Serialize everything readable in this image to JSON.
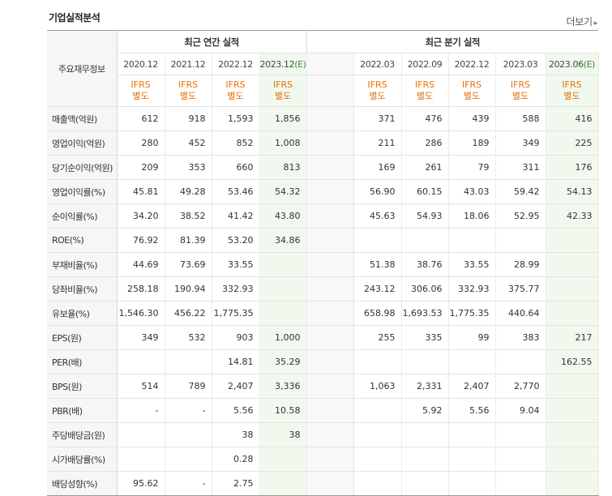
{
  "section_title": "기업실적분석",
  "more_link": "더보기",
  "header": {
    "row_label": "주요재무정보",
    "annual_group": "최근 연간 실적",
    "quarter_group": "최근 분기 실적",
    "annual_periods": [
      "2020.12",
      "2021.12",
      "2022.12",
      "2023.12"
    ],
    "annual_est_mark": "(E)",
    "quarter_periods": [
      "2022.03",
      "2022.09",
      "2022.12",
      "2023.03",
      "2023.06"
    ],
    "quarter_est_mark": "(E)",
    "ifrs": "IFRS",
    "basis": "별도"
  },
  "rows": [
    {
      "label": "매출액(억원)",
      "annual": [
        "612",
        "918",
        "1,593",
        "1,856"
      ],
      "quarter": [
        "371",
        "476",
        "439",
        "588",
        "416"
      ]
    },
    {
      "label": "영업이익(억원)",
      "annual": [
        "280",
        "452",
        "852",
        "1,008"
      ],
      "quarter": [
        "211",
        "286",
        "189",
        "349",
        "225"
      ]
    },
    {
      "label": "당기순이익(억원)",
      "annual": [
        "209",
        "353",
        "660",
        "813"
      ],
      "quarter": [
        "169",
        "261",
        "79",
        "311",
        "176"
      ]
    },
    {
      "label": "영업이익률(%)",
      "annual": [
        "45.81",
        "49.28",
        "53.46",
        "54.32"
      ],
      "quarter": [
        "56.90",
        "60.15",
        "43.03",
        "59.42",
        "54.13"
      ]
    },
    {
      "label": "순이익률(%)",
      "annual": [
        "34.20",
        "38.52",
        "41.42",
        "43.80"
      ],
      "quarter": [
        "45.63",
        "54.93",
        "18.06",
        "52.95",
        "42.33"
      ]
    },
    {
      "label": "ROE(%)",
      "annual": [
        "76.92",
        "81.39",
        "53.20",
        "34.86"
      ],
      "quarter": [
        "",
        "",
        "",
        "",
        ""
      ]
    },
    {
      "label": "부채비율(%)",
      "annual": [
        "44.69",
        "73.69",
        "33.55",
        ""
      ],
      "quarter": [
        "51.38",
        "38.76",
        "33.55",
        "28.99",
        ""
      ]
    },
    {
      "label": "당좌비율(%)",
      "annual": [
        "258.18",
        "190.94",
        "332.93",
        ""
      ],
      "quarter": [
        "243.12",
        "306.06",
        "332.93",
        "375.77",
        ""
      ]
    },
    {
      "label": "유보율(%)",
      "annual": [
        "1,546.30",
        "456.22",
        "1,775.35",
        ""
      ],
      "quarter": [
        "658.98",
        "1,693.53",
        "1,775.35",
        "440.64",
        ""
      ]
    },
    {
      "label": "EPS(원)",
      "annual": [
        "349",
        "532",
        "903",
        "1,000"
      ],
      "quarter": [
        "255",
        "335",
        "99",
        "383",
        "217"
      ]
    },
    {
      "label": "PER(배)",
      "annual": [
        "",
        "",
        "14.81",
        "35.29"
      ],
      "quarter": [
        "",
        "",
        "",
        "",
        "162.55"
      ]
    },
    {
      "label": "BPS(원)",
      "annual": [
        "514",
        "789",
        "2,407",
        "3,336"
      ],
      "quarter": [
        "1,063",
        "2,331",
        "2,407",
        "2,770",
        ""
      ]
    },
    {
      "label": "PBR(배)",
      "annual": [
        "-",
        "-",
        "5.56",
        "10.58"
      ],
      "quarter": [
        "",
        "5.92",
        "5.56",
        "9.04",
        ""
      ]
    },
    {
      "label": "주당배당금(원)",
      "annual": [
        "",
        "",
        "38",
        "38"
      ],
      "quarter": [
        "",
        "",
        "",
        "",
        ""
      ]
    },
    {
      "label": "시가배당률(%)",
      "annual": [
        "",
        "",
        "0.28",
        ""
      ],
      "quarter": [
        "",
        "",
        "",
        "",
        ""
      ]
    },
    {
      "label": "배당성향(%)",
      "annual": [
        "95.62",
        "-",
        "2.75",
        ""
      ],
      "quarter": [
        "",
        "",
        "",
        "",
        ""
      ]
    }
  ],
  "colors": {
    "accent_orange": "#e8700b",
    "estimate_bg": "#f1f9ef",
    "estimate_mark": "#3a8f2a"
  }
}
